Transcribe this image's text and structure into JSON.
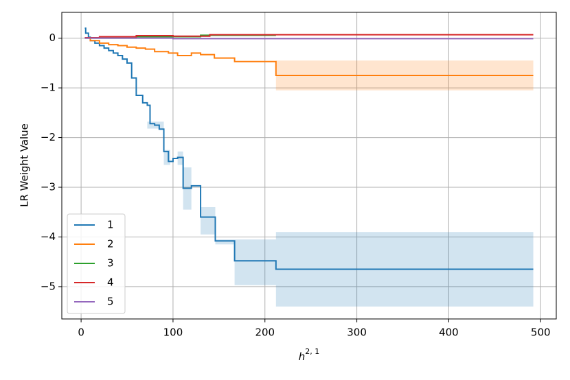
{
  "chart_data": {
    "type": "step",
    "y_label": "LR Weight Value",
    "x_label": "h",
    "x_label_sup": "2, 1",
    "xlim": [
      -21,
      517
    ],
    "ylim": [
      -5.65,
      0.52
    ],
    "xticks": [
      0,
      100,
      200,
      300,
      400,
      500
    ],
    "yticks": [
      {
        "value": 0,
        "label": "0"
      },
      {
        "value": -1,
        "label": "−1"
      },
      {
        "value": -2,
        "label": "−2"
      },
      {
        "value": -3,
        "label": "−3"
      },
      {
        "value": -4,
        "label": "−4"
      },
      {
        "value": -5,
        "label": "−5"
      }
    ],
    "grid": true,
    "legend": "lower left",
    "series": [
      {
        "name": "1",
        "color": "#1f77b4",
        "x": [
          4,
          5,
          8,
          10,
          15,
          20,
          25,
          30,
          35,
          40,
          45,
          50,
          55,
          60,
          67,
          72,
          75,
          80,
          85,
          90,
          95,
          100,
          105,
          111,
          120,
          130,
          146,
          167,
          212,
          492
        ],
        "values": [
          0.2,
          0.1,
          0.02,
          -0.05,
          -0.1,
          -0.15,
          -0.2,
          -0.25,
          -0.3,
          -0.35,
          -0.42,
          -0.5,
          -0.8,
          -1.15,
          -1.3,
          -1.35,
          -1.72,
          -1.75,
          -1.83,
          -2.28,
          -2.48,
          -2.42,
          -2.4,
          -3.02,
          -2.97,
          -3.6,
          -4.08,
          -4.48,
          -4.65,
          -4.65
        ],
        "bands": [
          [
            72,
            90,
            -1.82,
            -1.68
          ],
          [
            90,
            97,
            -2.55,
            -2.25
          ],
          [
            105,
            111,
            -2.55,
            -2.28
          ],
          [
            111,
            120,
            -3.45,
            -2.6
          ],
          [
            130,
            146,
            -3.95,
            -3.4
          ],
          [
            146,
            167,
            -4.15,
            -4.05
          ],
          [
            167,
            212,
            -4.97,
            -4.05
          ],
          [
            212,
            492,
            -5.4,
            -3.9
          ]
        ]
      },
      {
        "name": "2",
        "color": "#ff7f0e",
        "x": [
          4,
          10,
          20,
          30,
          40,
          50,
          60,
          70,
          80,
          95,
          105,
          120,
          130,
          145,
          167,
          212,
          492
        ],
        "values": [
          0,
          -0.05,
          -0.1,
          -0.13,
          -0.15,
          -0.18,
          -0.2,
          -0.22,
          -0.27,
          -0.3,
          -0.35,
          -0.3,
          -0.33,
          -0.4,
          -0.47,
          -0.75,
          -0.75
        ],
        "bands": [
          [
            212,
            492,
            -1.05,
            -0.45
          ]
        ]
      },
      {
        "name": "3",
        "color": "#2ca02c",
        "x": [
          4,
          60,
          130,
          212
        ],
        "values": [
          0,
          0.03,
          0.06,
          0.06
        ],
        "bands": []
      },
      {
        "name": "4",
        "color": "#d62728",
        "x": [
          4,
          20,
          60,
          100,
          140,
          492
        ],
        "values": [
          0.01,
          0.03,
          0.05,
          0.04,
          0.07,
          0.07
        ],
        "bands": []
      },
      {
        "name": "5",
        "color": "#9467bd",
        "x": [
          4,
          100,
          492
        ],
        "values": [
          0,
          -0.01,
          -0.01
        ],
        "bands": []
      }
    ]
  }
}
